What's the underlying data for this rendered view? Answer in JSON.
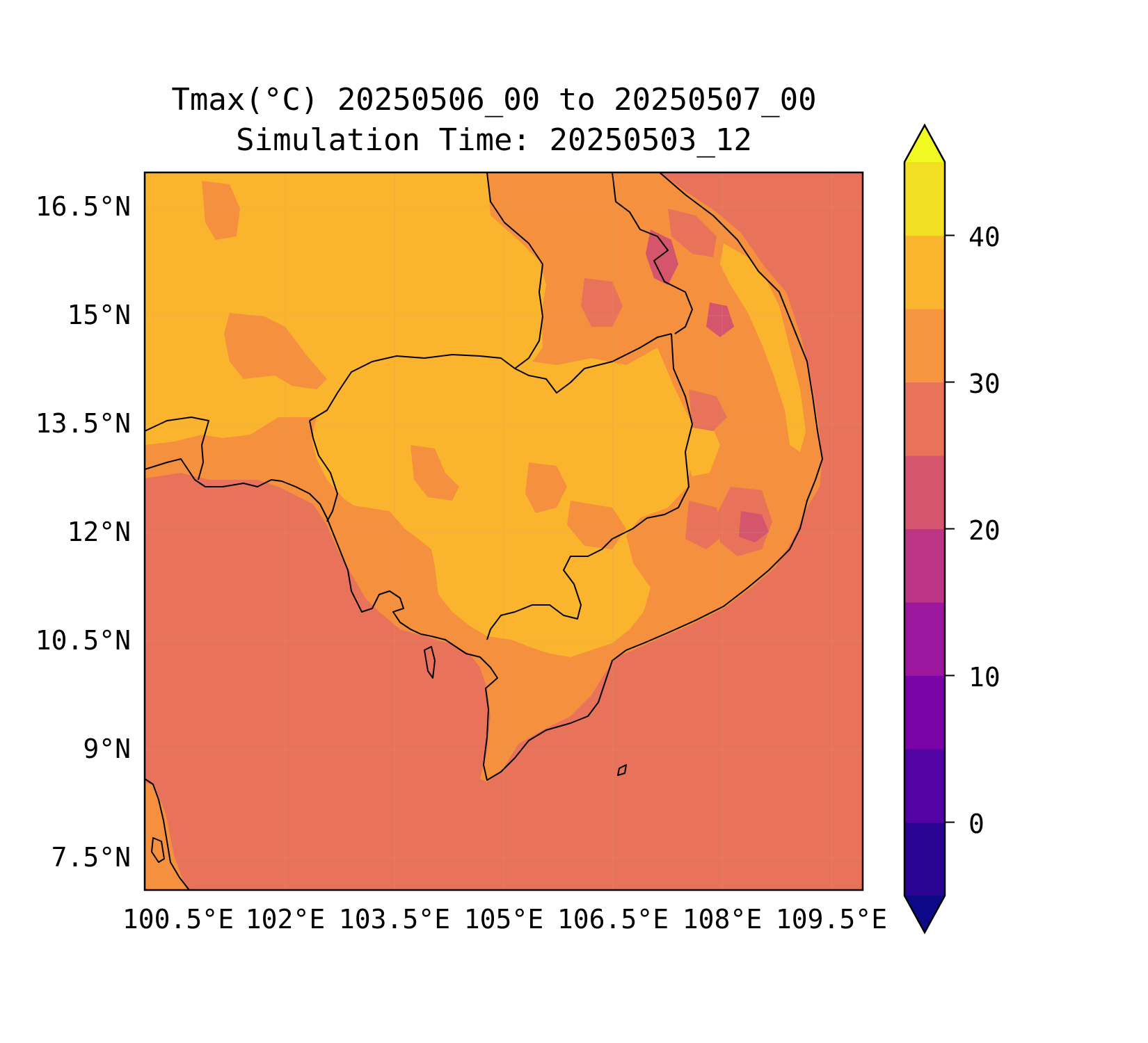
{
  "map": {
    "title_line1": "Tmax(°C) 20250506_00 to 20250507_00",
    "title_line2": "Simulation Time: 20250503_12",
    "lat_labels": [
      "16.5°N",
      "15°N",
      "13.5°N",
      "12°N",
      "10.5°N",
      "9°N",
      "7.5°N"
    ],
    "lon_labels": [
      "100.5°E",
      "102°E",
      "103.5°E",
      "105°E",
      "106.5°E",
      "108°E",
      "109.5°E"
    ],
    "colors": {
      "sea": "#e8735a",
      "land_hot": "#fbb42e",
      "land_warm": "#f5913e",
      "cool_patch": "#d5566c",
      "coastline": "#000000"
    }
  },
  "colorbar": {
    "ticks": [
      "40",
      "30",
      "20",
      "10",
      "0"
    ],
    "levels": [
      -5,
      0,
      5,
      10,
      15,
      20,
      25,
      30,
      35,
      40,
      45
    ],
    "colors": [
      "#0d0887",
      "#2a0593",
      "#5302a3",
      "#7a03a8",
      "#9c179e",
      "#bc3587",
      "#d5546e",
      "#e8735a",
      "#f89540",
      "#fbb42e",
      "#f4e022",
      "#f0f921"
    ]
  }
}
